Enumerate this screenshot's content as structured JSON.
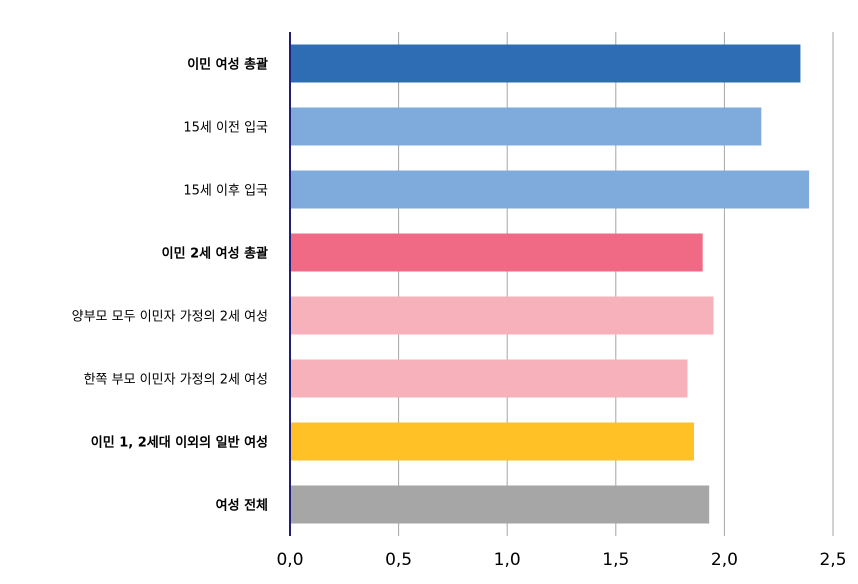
{
  "chart_data": {
    "type": "bar",
    "orientation": "horizontal",
    "categories": [
      "이민 여성 총괄",
      "15세 이전 입국",
      "15세 이후 입국",
      "이민 2세 여성 총괄",
      "양부모 모두 이민자 가정의 2세 여성",
      "한쪽 부모 이민자 가정의 2세 여성",
      "이민 1, 2세대 이외의 일반 여성",
      "여성 전체"
    ],
    "bold_categories": [
      true,
      false,
      false,
      true,
      false,
      false,
      true,
      true
    ],
    "values": [
      2.35,
      2.17,
      2.39,
      1.9,
      1.95,
      1.83,
      1.86,
      1.93
    ],
    "bar_colors": [
      "#2E6DB4",
      "#7FAADC",
      "#7FAADC",
      "#F06A85",
      "#F6B1BA",
      "#F6B1BA",
      "#FFC125",
      "#A6A6A6"
    ],
    "xlim": [
      0,
      2.5
    ],
    "xticks": [
      0,
      0.5,
      1.0,
      1.5,
      2.0,
      2.5
    ],
    "xtick_labels": [
      "0,0",
      "0,5",
      "1,0",
      "1,5",
      "2,0",
      "2,5"
    ],
    "grid": true,
    "axis_color": "#1F1F7A",
    "grid_color": "#A6A6A6",
    "title": "",
    "xlabel": "",
    "ylabel": ""
  }
}
